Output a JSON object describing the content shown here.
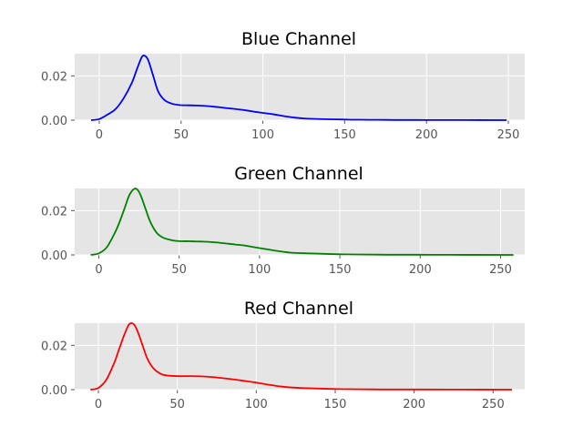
{
  "chart_data": [
    {
      "type": "line",
      "title": "Blue Channel",
      "color": "#0000ff",
      "grid": true,
      "background": "#e5e5e5",
      "xlim": [
        -15,
        260
      ],
      "ylim": [
        0,
        0.03
      ],
      "xticks": [
        0,
        50,
        100,
        150,
        200,
        250
      ],
      "yticks": [
        0.0,
        0.02
      ],
      "ytick_labels": [
        "0.00",
        "0.02"
      ],
      "series": [
        {
          "x": [
            -5,
            0,
            5,
            10,
            15,
            20,
            23,
            26,
            28,
            30,
            33,
            36,
            40,
            45,
            50,
            55,
            60,
            65,
            70,
            75,
            80,
            85,
            90,
            95,
            100,
            105,
            110,
            115,
            120,
            125,
            130,
            140,
            150,
            160,
            170,
            180,
            190,
            200,
            220,
            249
          ],
          "y": [
            0.0,
            0.0005,
            0.0025,
            0.005,
            0.01,
            0.017,
            0.023,
            0.0285,
            0.029,
            0.027,
            0.02,
            0.013,
            0.009,
            0.0073,
            0.0068,
            0.0067,
            0.0066,
            0.0064,
            0.0061,
            0.0057,
            0.0053,
            0.0049,
            0.0044,
            0.0038,
            0.0033,
            0.0028,
            0.0022,
            0.0016,
            0.0011,
            0.0008,
            0.0006,
            0.0004,
            0.0003,
            0.0002,
            0.00015,
            0.0001,
            7e-05,
            5e-05,
            3e-05,
            1e-05
          ]
        }
      ]
    },
    {
      "type": "line",
      "title": "Green Channel",
      "color": "#008000",
      "grid": true,
      "background": "#e5e5e5",
      "xlim": [
        -15,
        265
      ],
      "ylim": [
        0,
        0.03
      ],
      "xticks": [
        0,
        50,
        100,
        150,
        200,
        250
      ],
      "yticks": [
        0.0,
        0.02
      ],
      "ytick_labels": [
        "0.00",
        "0.02"
      ],
      "series": [
        {
          "x": [
            -5,
            0,
            5,
            10,
            13,
            16,
            19,
            22,
            24,
            26,
            29,
            32,
            36,
            40,
            45,
            50,
            55,
            60,
            65,
            70,
            75,
            80,
            85,
            90,
            95,
            100,
            105,
            110,
            115,
            120,
            130,
            140,
            150,
            160,
            180,
            200,
            220,
            258
          ],
          "y": [
            0.0,
            0.0007,
            0.0035,
            0.01,
            0.015,
            0.021,
            0.027,
            0.0298,
            0.0295,
            0.027,
            0.021,
            0.015,
            0.01,
            0.0078,
            0.0067,
            0.0062,
            0.0062,
            0.0061,
            0.006,
            0.0058,
            0.0055,
            0.0051,
            0.0047,
            0.0043,
            0.0037,
            0.0031,
            0.0025,
            0.0019,
            0.0014,
            0.001,
            0.0007,
            0.0005,
            0.0003,
            0.0002,
            0.0001,
            7e-05,
            4e-05,
            1e-05
          ]
        }
      ]
    },
    {
      "type": "line",
      "title": "Red Channel",
      "color": "#ff0000",
      "grid": true,
      "background": "#e5e5e5",
      "xlim": [
        -15,
        270
      ],
      "ylim": [
        0,
        0.03
      ],
      "xticks": [
        0,
        50,
        100,
        150,
        200,
        250
      ],
      "yticks": [
        0.0,
        0.02
      ],
      "ytick_labels": [
        "0.00",
        "0.02"
      ],
      "series": [
        {
          "x": [
            -5,
            0,
            5,
            10,
            13,
            16,
            19,
            21,
            23,
            25,
            28,
            31,
            35,
            40,
            45,
            50,
            55,
            60,
            65,
            70,
            75,
            80,
            85,
            90,
            95,
            100,
            105,
            110,
            115,
            120,
            130,
            140,
            150,
            160,
            180,
            200,
            230,
            262
          ],
          "y": [
            0.0,
            0.0008,
            0.0045,
            0.012,
            0.018,
            0.024,
            0.029,
            0.03,
            0.029,
            0.026,
            0.02,
            0.014,
            0.0095,
            0.007,
            0.0063,
            0.0061,
            0.0061,
            0.0061,
            0.006,
            0.0058,
            0.0055,
            0.0051,
            0.0047,
            0.0042,
            0.0037,
            0.0032,
            0.0026,
            0.002,
            0.0015,
            0.0011,
            0.0007,
            0.0005,
            0.0003,
            0.0002,
            0.0001,
            7e-05,
            4e-05,
            1e-05
          ]
        }
      ]
    }
  ]
}
